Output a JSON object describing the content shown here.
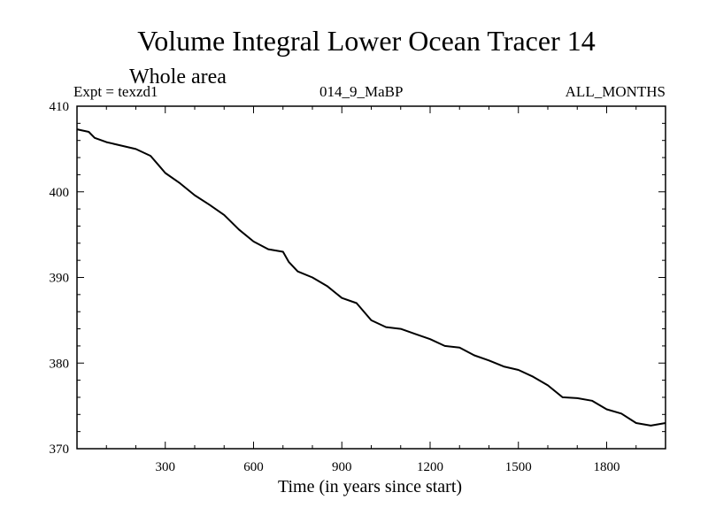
{
  "chart_data": {
    "type": "line",
    "title": "Volume Integral Lower Ocean Tracer 14",
    "subtitle": "Whole area",
    "experiment_label": "Expt = texzd1",
    "run_label": "014_9_MaBP",
    "months_label": "ALL_MONTHS",
    "xlabel": "Time (in years since start)",
    "ylabel": "",
    "xlim": [
      0,
      2000
    ],
    "ylim": [
      370,
      410
    ],
    "x_ticks": [
      300,
      600,
      900,
      1200,
      1500,
      1800
    ],
    "x_tick_labels": [
      "300",
      "600",
      "900",
      "1200",
      "1500",
      "1800"
    ],
    "y_ticks": [
      370,
      380,
      390,
      400,
      410
    ],
    "y_tick_labels": [
      "370",
      "380",
      "390",
      "400",
      "410"
    ],
    "grid": false,
    "series": [
      {
        "name": "Volume Integral Lower Ocean Tracer 14",
        "color": "#000000",
        "x": [
          0,
          40,
          60,
          100,
          150,
          200,
          250,
          280,
          300,
          350,
          400,
          450,
          500,
          550,
          600,
          650,
          700,
          720,
          750,
          800,
          850,
          900,
          950,
          1000,
          1050,
          1100,
          1150,
          1200,
          1250,
          1300,
          1350,
          1400,
          1450,
          1500,
          1550,
          1600,
          1650,
          1700,
          1750,
          1800,
          1850,
          1900,
          1950,
          2000
        ],
        "y": [
          407.3,
          407.0,
          406.3,
          405.8,
          405.4,
          405.0,
          404.2,
          403.0,
          402.2,
          401.0,
          399.6,
          398.5,
          397.3,
          395.6,
          394.2,
          393.3,
          393.0,
          391.8,
          390.7,
          390.0,
          389.0,
          387.6,
          387.0,
          385.0,
          384.2,
          384.0,
          383.4,
          382.8,
          382.0,
          381.8,
          380.9,
          380.3,
          379.6,
          379.2,
          378.4,
          377.4,
          376.0,
          375.9,
          375.6,
          374.6,
          374.1,
          373.0,
          372.7,
          373.0
        ]
      }
    ]
  }
}
